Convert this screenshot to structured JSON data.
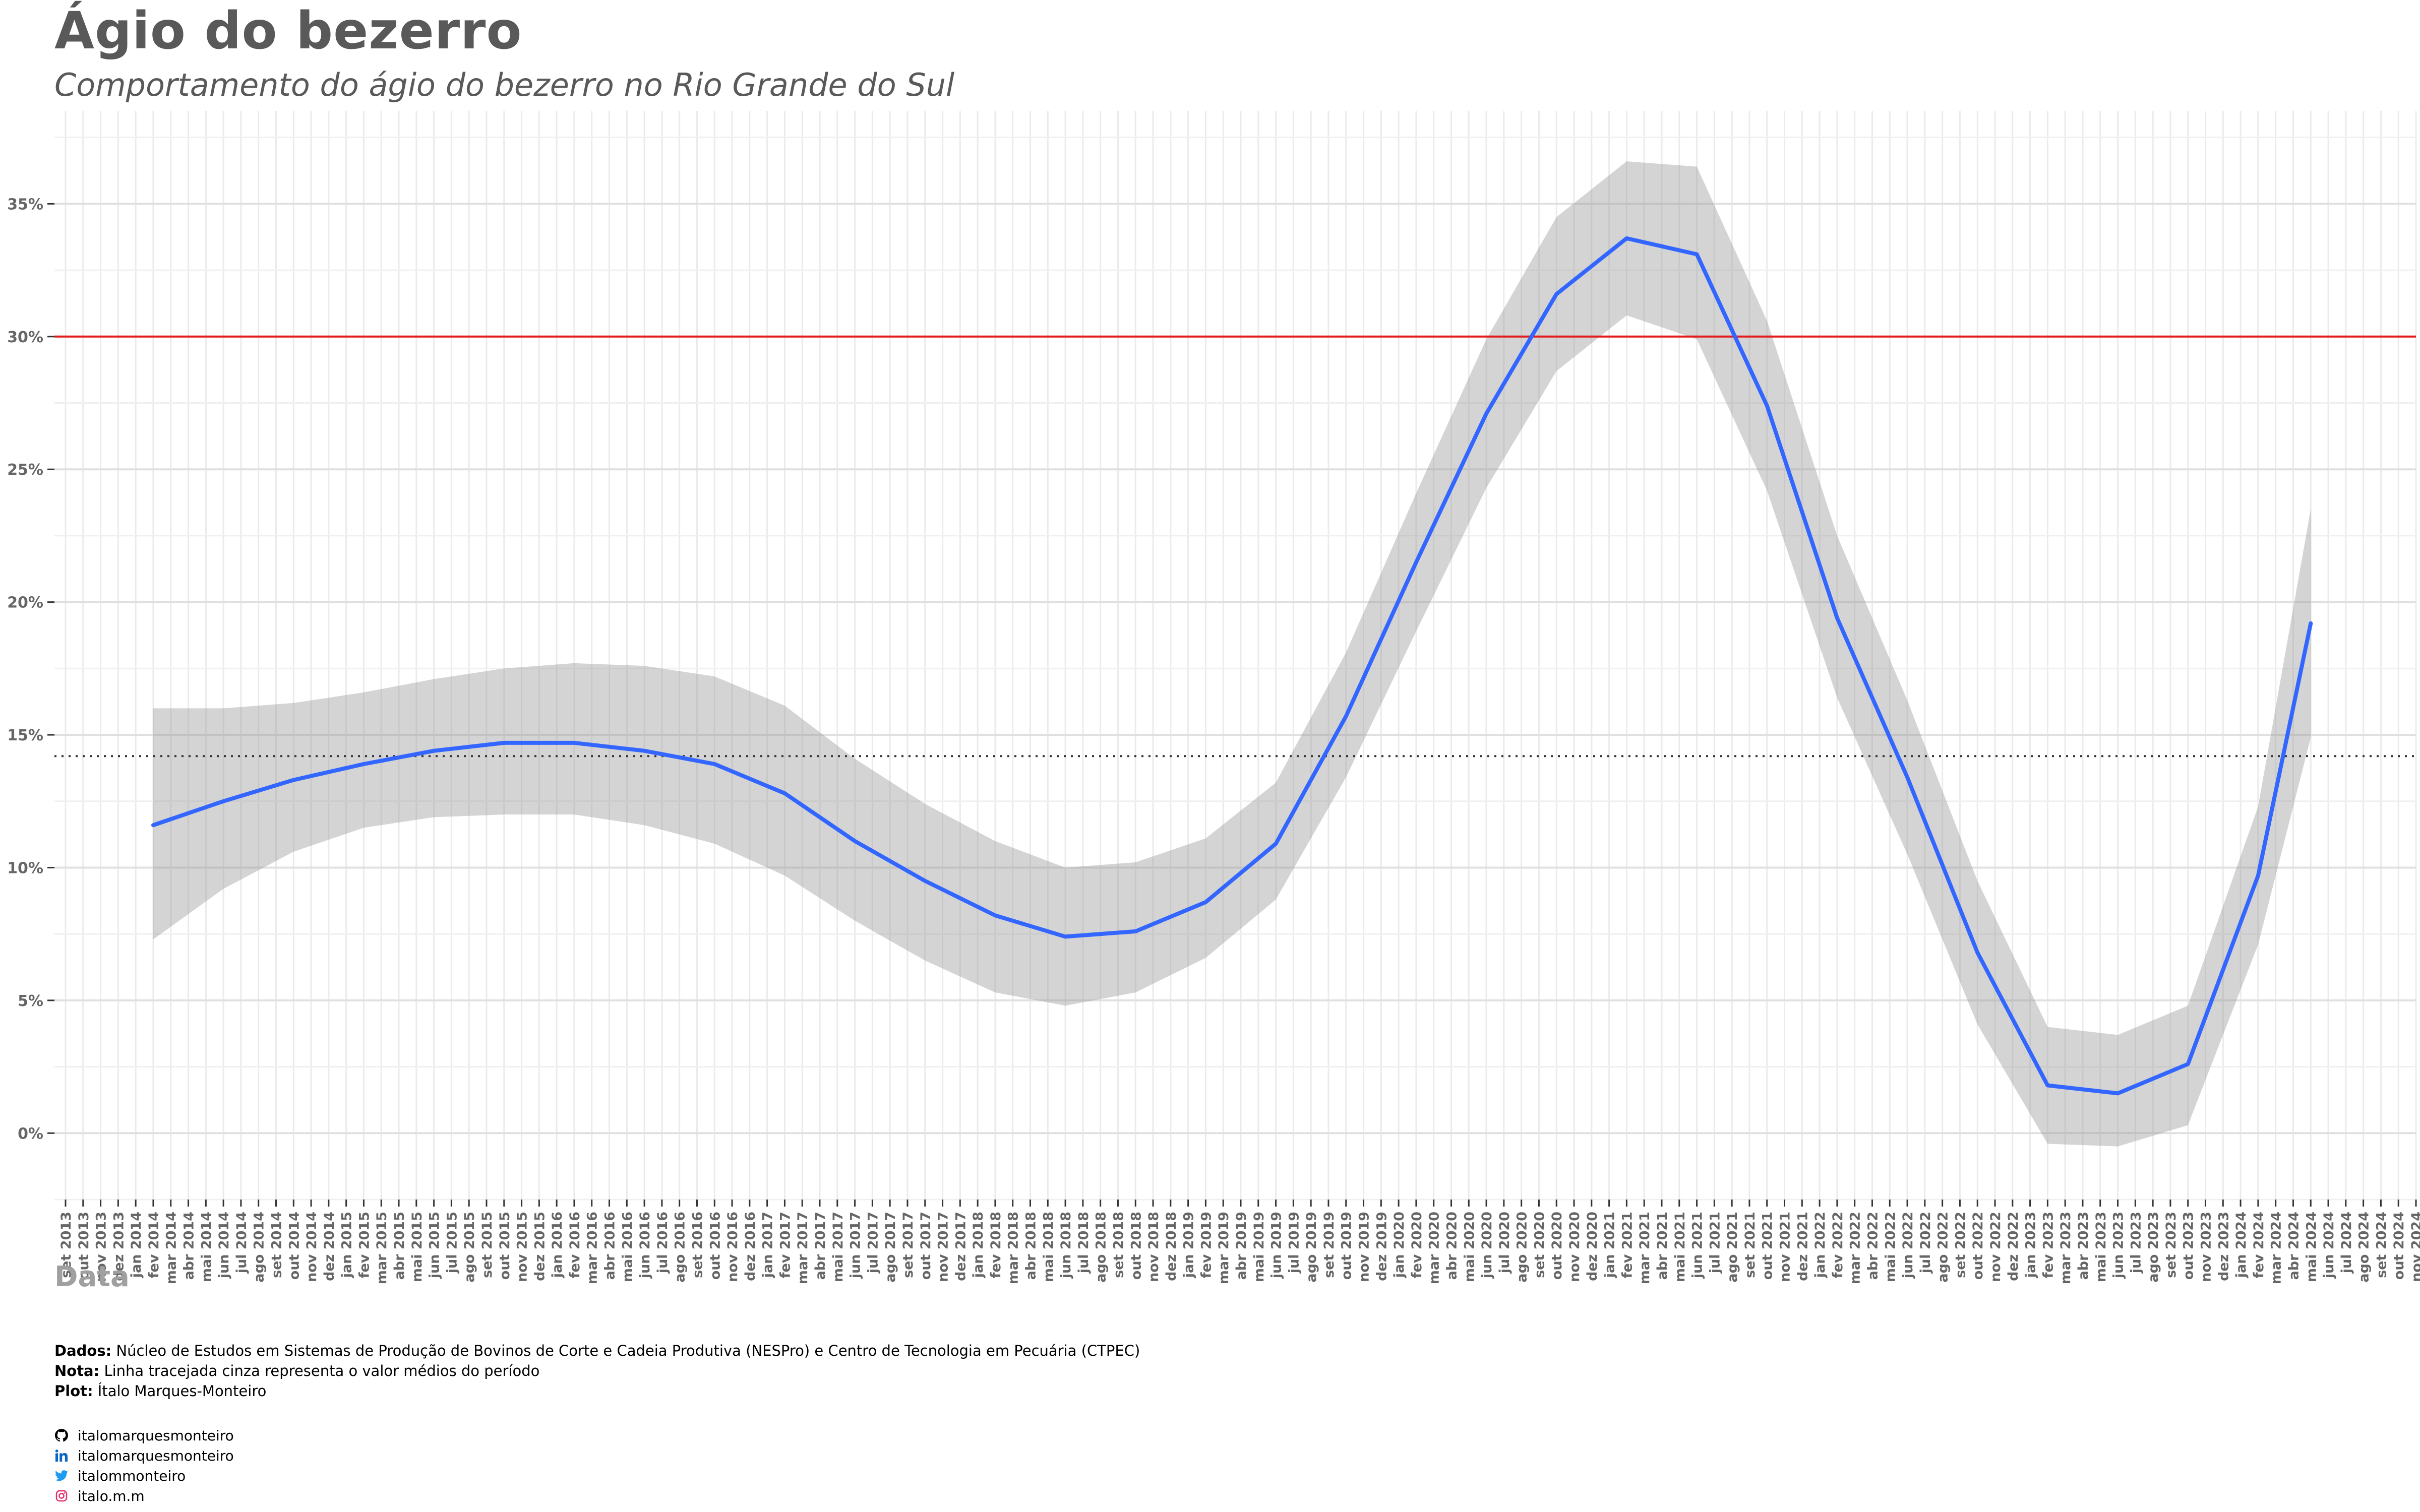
{
  "title": "Ágio do bezerro",
  "subtitle": "Comportamento do ágio do bezerro no Rio Grande do Sul",
  "chart_data": {
    "type": "line",
    "xlabel": "Data",
    "ylabel": "",
    "x_range": [
      "set 2013",
      "nov 2024"
    ],
    "ylim": [
      -2.5,
      38.5
    ],
    "y_ticks": [
      0,
      5,
      10,
      15,
      20,
      25,
      30,
      35
    ],
    "y_tick_labels": [
      "0%",
      "5%",
      "10%",
      "15%",
      "20%",
      "25%",
      "30%",
      "35%"
    ],
    "x_tick_labels": [
      "set 2013",
      "out 2013",
      "nov 2013",
      "dez 2013",
      "jan 2014",
      "fev 2014",
      "mar 2014",
      "abr 2014",
      "mai 2014",
      "jun 2014",
      "jul 2014",
      "ago 2014",
      "set 2014",
      "out 2014",
      "nov 2014",
      "dez 2014",
      "jan 2015",
      "fev 2015",
      "mar 2015",
      "abr 2015",
      "mai 2015",
      "jun 2015",
      "jul 2015",
      "ago 2015",
      "set 2015",
      "out 2015",
      "nov 2015",
      "dez 2015",
      "jan 2016",
      "fev 2016",
      "mar 2016",
      "abr 2016",
      "mai 2016",
      "jun 2016",
      "jul 2016",
      "ago 2016",
      "set 2016",
      "out 2016",
      "nov 2016",
      "dez 2016",
      "jan 2017",
      "fev 2017",
      "mar 2017",
      "abr 2017",
      "mai 2017",
      "jun 2017",
      "jul 2017",
      "ago 2017",
      "set 2017",
      "out 2017",
      "nov 2017",
      "dez 2017",
      "jan 2018",
      "fev 2018",
      "mar 2018",
      "abr 2018",
      "mai 2018",
      "jun 2018",
      "jul 2018",
      "ago 2018",
      "set 2018",
      "out 2018",
      "nov 2018",
      "dez 2018",
      "jan 2019",
      "fev 2019",
      "mar 2019",
      "abr 2019",
      "mai 2019",
      "jun 2019",
      "jul 2019",
      "ago 2019",
      "set 2019",
      "out 2019",
      "nov 2019",
      "dez 2019",
      "jan 2020",
      "fev 2020",
      "mar 2020",
      "abr 2020",
      "mai 2020",
      "jun 2020",
      "jul 2020",
      "ago 2020",
      "set 2020",
      "out 2020",
      "nov 2020",
      "dez 2020",
      "jan 2021",
      "fev 2021",
      "mar 2021",
      "abr 2021",
      "mai 2021",
      "jun 2021",
      "jul 2021",
      "ago 2021",
      "set 2021",
      "out 2021",
      "nov 2021",
      "dez 2021",
      "jan 2022",
      "fev 2022",
      "mar 2022",
      "abr 2022",
      "mai 2022",
      "jun 2022",
      "jul 2022",
      "ago 2022",
      "set 2022",
      "out 2022",
      "nov 2022",
      "dez 2022",
      "jan 2023",
      "fev 2023",
      "mar 2023",
      "abr 2023",
      "mai 2023",
      "jun 2023",
      "jul 2023",
      "ago 2023",
      "set 2023",
      "out 2023",
      "nov 2023",
      "dez 2023",
      "jan 2024",
      "fev 2024",
      "mar 2024",
      "abr 2024",
      "mai 2024",
      "jun 2024",
      "jul 2024",
      "ago 2024",
      "set 2024",
      "out 2024",
      "nov 2024"
    ],
    "series": [
      {
        "color": "#3366ff",
        "x": [
          "fev 2014",
          "jun 2014",
          "out 2014",
          "fev 2015",
          "jun 2015",
          "out 2015",
          "fev 2016",
          "jun 2016",
          "out 2016",
          "fev 2017",
          "jun 2017",
          "out 2017",
          "fev 2018",
          "jun 2018",
          "out 2018",
          "fev 2019",
          "jun 2019",
          "out 2019",
          "fev 2020",
          "jun 2020",
          "out 2020",
          "fev 2021",
          "jun 2021",
          "out 2021",
          "fev 2022",
          "jun 2022",
          "out 2022",
          "fev 2023",
          "jun 2023",
          "out 2023",
          "fev 2024",
          "mai 2024"
        ],
        "values": [
          11.6,
          12.5,
          13.3,
          13.9,
          14.4,
          14.7,
          14.7,
          14.4,
          13.9,
          12.8,
          11.0,
          9.5,
          8.2,
          7.4,
          7.6,
          8.7,
          10.9,
          15.7,
          21.5,
          27.1,
          31.6,
          33.7,
          33.1,
          27.4,
          19.4,
          13.4,
          6.8,
          1.8,
          1.5,
          2.6,
          9.7,
          19.2
        ],
        "lower": [
          7.3,
          9.2,
          10.6,
          11.5,
          11.9,
          12.0,
          12.0,
          11.6,
          10.9,
          9.7,
          8.0,
          6.5,
          5.3,
          4.8,
          5.3,
          6.6,
          8.8,
          13.4,
          18.9,
          24.3,
          28.7,
          30.8,
          29.9,
          24.2,
          16.4,
          10.5,
          4.1,
          -0.4,
          -0.5,
          0.3,
          7.1,
          14.9
        ],
        "upper": [
          16.0,
          16.0,
          16.2,
          16.6,
          17.1,
          17.5,
          17.7,
          17.6,
          17.2,
          16.1,
          14.1,
          12.4,
          11.0,
          10.0,
          10.2,
          11.1,
          13.2,
          18.1,
          24.1,
          29.9,
          34.5,
          36.6,
          36.4,
          30.6,
          22.5,
          16.3,
          9.5,
          4.0,
          3.7,
          4.8,
          12.3,
          23.5
        ]
      }
    ],
    "reference_lines": [
      {
        "y": 30,
        "color": "#e41a1c",
        "style": "solid"
      },
      {
        "y": 14.2,
        "color": "#333333",
        "style": "dotted"
      }
    ],
    "grid": true
  },
  "caption": {
    "dados_label": "Dados:",
    "dados_text": " Núcleo de Estudos em Sistemas de Produção de Bovinos de Corte e Cadeia Produtiva (NESPro) e Centro de Tecnologia em Pecuária (CTPEC)",
    "nota_label": "Nota:",
    "nota_text": " Linha tracejada cinza representa o valor médios do período",
    "plot_label": "Plot:",
    "plot_text": " Ítalo Marques-Monteiro"
  },
  "social": {
    "github": {
      "icon": "github-icon",
      "handle": "italomarquesmonteiro"
    },
    "linkedin": {
      "icon": "linkedin-icon",
      "handle": "italomarquesmonteiro"
    },
    "twitter": {
      "icon": "twitter-icon",
      "handle": "italommonteiro"
    },
    "instagram": {
      "icon": "instagram-icon",
      "handle": "italo.m.m"
    }
  }
}
